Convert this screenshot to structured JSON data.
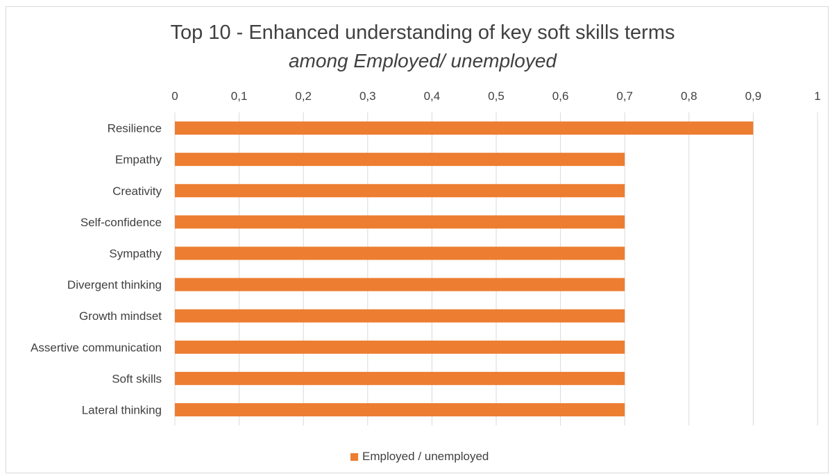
{
  "chart_data": {
    "type": "bar",
    "orientation": "horizontal",
    "title": "Top 10 - Enhanced understanding of key soft skills terms",
    "subtitle": "among Employed/ unemployed",
    "categories": [
      "Resilience",
      "Empathy",
      "Creativity",
      "Self-confidence",
      "Sympathy",
      "Divergent thinking",
      "Growth mindset",
      "Assertive communication",
      "Soft skills",
      "Lateral thinking"
    ],
    "series": [
      {
        "name": "Employed / unemployed",
        "values": [
          0.9,
          0.7,
          0.7,
          0.7,
          0.7,
          0.7,
          0.7,
          0.7,
          0.7,
          0.7
        ]
      }
    ],
    "xlim": [
      0,
      1
    ],
    "x_ticks": [
      "0",
      "0,1",
      "0,2",
      "0,3",
      "0,4",
      "0,5",
      "0,6",
      "0,7",
      "0,8",
      "0,9",
      "1"
    ],
    "x_axis_position": "top",
    "grid": true,
    "legend_position": "bottom",
    "bar_color": "#ED7D31",
    "grid_color": "#d9d9d9"
  }
}
